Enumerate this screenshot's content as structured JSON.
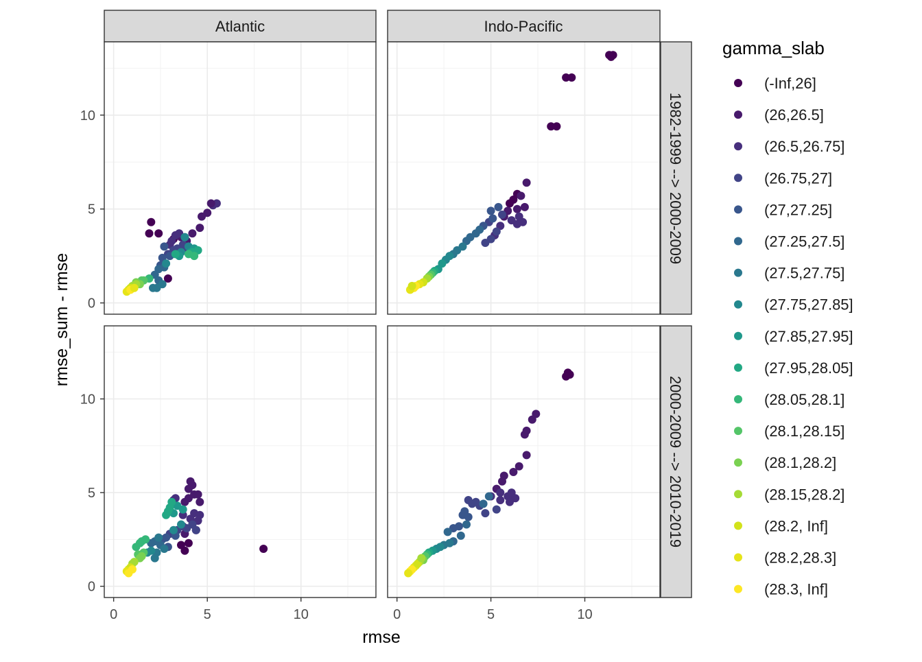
{
  "chart_data": {
    "type": "scatter",
    "xlabel": "rmse",
    "ylabel": "rmse_sum - rmse",
    "xlim": [
      -0.5,
      14
    ],
    "ylim": [
      -0.6,
      13.9
    ],
    "x_ticks": [
      0,
      5,
      10
    ],
    "y_ticks": [
      0,
      5,
      10
    ],
    "grid": true,
    "legend": {
      "title": "gamma_slab",
      "placement": "right",
      "entries": [
        {
          "label": "(-Inf,26]",
          "color": "#440154"
        },
        {
          "label": "(26,26.5]",
          "color": "#481A6C"
        },
        {
          "label": "(26.5,26.75]",
          "color": "#472F7D"
        },
        {
          "label": "(26.75,27]",
          "color": "#414487"
        },
        {
          "label": "(27,27.25]",
          "color": "#39568C"
        },
        {
          "label": "(27.25,27.5]",
          "color": "#31688E"
        },
        {
          "label": "(27.5,27.75]",
          "color": "#2A788E"
        },
        {
          "label": "(27.75,27.85]",
          "color": "#23888E"
        },
        {
          "label": "(27.85,27.95]",
          "color": "#1F988B"
        },
        {
          "label": "(27.95,28.05]",
          "color": "#22A884"
        },
        {
          "label": "(28.05,28.1]",
          "color": "#35B779"
        },
        {
          "label": "(28.1,28.15]",
          "color": "#54C568"
        },
        {
          "label": "(28.1,28.2]",
          "color": "#7AD151"
        },
        {
          "label": "(28.15,28.2]",
          "color": "#A5DB36"
        },
        {
          "label": "(28.2, Inf]",
          "color": "#D2E21B"
        },
        {
          "label": "(28.2,28.3]",
          "color": "#E6E419"
        },
        {
          "label": "(28.3, Inf]",
          "color": "#FDE725"
        }
      ]
    },
    "facet_columns": [
      "Atlantic",
      "Indo-Pacific"
    ],
    "facet_rows": [
      "1982-1999 --> 2000-2009",
      "2000-2009 --> 2010-2019"
    ],
    "panels": [
      {
        "column": "Atlantic",
        "row": "1982-1999 --> 2000-2009",
        "points": [
          [
            2.0,
            4.3,
            0
          ],
          [
            1.9,
            3.7,
            0
          ],
          [
            2.4,
            3.7,
            0
          ],
          [
            2.9,
            1.3,
            0
          ],
          [
            3.2,
            3.4,
            0
          ],
          [
            3.6,
            3.5,
            1
          ],
          [
            3.9,
            3.3,
            1
          ],
          [
            4.2,
            3.7,
            1
          ],
          [
            4.6,
            4.0,
            1
          ],
          [
            4.7,
            4.6,
            1
          ],
          [
            5.0,
            4.8,
            1
          ],
          [
            5.3,
            5.2,
            2
          ],
          [
            5.5,
            5.3,
            2
          ],
          [
            5.2,
            5.3,
            1
          ],
          [
            3.1,
            3.3,
            2
          ],
          [
            3.3,
            3.6,
            2
          ],
          [
            3.5,
            3.7,
            2
          ],
          [
            3.8,
            3.5,
            2
          ],
          [
            3.0,
            3.1,
            2
          ],
          [
            3.4,
            2.9,
            3
          ],
          [
            3.7,
            3.1,
            3
          ],
          [
            3.9,
            2.8,
            3
          ],
          [
            2.9,
            2.6,
            3
          ],
          [
            3.2,
            2.8,
            3
          ],
          [
            2.7,
            3.0,
            4
          ],
          [
            3.0,
            2.5,
            4
          ],
          [
            2.5,
            2.0,
            4
          ],
          [
            2.6,
            2.4,
            4
          ],
          [
            2.4,
            1.8,
            5
          ],
          [
            2.7,
            1.9,
            5
          ],
          [
            2.2,
            1.5,
            5
          ],
          [
            2.4,
            1.2,
            5
          ],
          [
            2.6,
            1.0,
            6
          ],
          [
            2.3,
            0.8,
            6
          ],
          [
            2.1,
            0.8,
            6
          ],
          [
            2.8,
            2.1,
            7
          ],
          [
            3.6,
            2.7,
            7
          ],
          [
            3.8,
            3.5,
            7
          ],
          [
            4.0,
            3.0,
            7
          ],
          [
            3.5,
            2.5,
            8
          ],
          [
            4.1,
            2.7,
            8
          ],
          [
            4.3,
            2.9,
            8
          ],
          [
            4.5,
            2.8,
            9
          ],
          [
            3.3,
            2.6,
            9
          ],
          [
            4.2,
            2.7,
            9
          ],
          [
            4.3,
            2.5,
            10
          ],
          [
            4.0,
            2.6,
            10
          ],
          [
            1.9,
            1.3,
            10
          ],
          [
            1.6,
            1.2,
            11
          ],
          [
            1.5,
            1.2,
            11
          ],
          [
            1.4,
            1.0,
            12
          ],
          [
            1.2,
            1.1,
            12
          ],
          [
            1.2,
            1.0,
            13
          ],
          [
            1.0,
            0.9,
            13
          ],
          [
            0.9,
            0.8,
            14
          ],
          [
            0.8,
            0.7,
            14
          ],
          [
            0.7,
            0.6,
            15
          ],
          [
            0.9,
            0.7,
            16
          ],
          [
            1.1,
            0.8,
            15
          ]
        ]
      },
      {
        "column": "Indo-Pacific",
        "row": "1982-1999 --> 2000-2009",
        "points": [
          [
            11.3,
            13.2,
            0
          ],
          [
            11.5,
            13.2,
            0
          ],
          [
            11.4,
            13.1,
            0
          ],
          [
            9.0,
            12.0,
            0
          ],
          [
            9.3,
            12.0,
            0
          ],
          [
            8.2,
            9.4,
            0
          ],
          [
            8.5,
            9.4,
            0
          ],
          [
            6.2,
            5.5,
            0
          ],
          [
            6.0,
            5.3,
            0
          ],
          [
            6.4,
            5.8,
            0
          ],
          [
            6.9,
            6.4,
            1
          ],
          [
            6.6,
            5.7,
            1
          ],
          [
            6.4,
            5.0,
            1
          ],
          [
            6.8,
            5.1,
            1
          ],
          [
            5.9,
            4.9,
            1
          ],
          [
            5.7,
            4.6,
            1
          ],
          [
            6.1,
            4.4,
            2
          ],
          [
            6.4,
            4.2,
            2
          ],
          [
            6.7,
            4.3,
            2
          ],
          [
            6.5,
            4.6,
            2
          ],
          [
            5.5,
            4.1,
            2
          ],
          [
            5.2,
            3.6,
            2
          ],
          [
            4.7,
            3.2,
            3
          ],
          [
            5.0,
            3.4,
            3
          ],
          [
            5.3,
            3.8,
            3
          ],
          [
            5.6,
            4.7,
            3
          ],
          [
            4.9,
            4.3,
            3
          ],
          [
            5.1,
            4.5,
            4
          ],
          [
            5.4,
            5.1,
            4
          ],
          [
            5.0,
            4.9,
            4
          ],
          [
            4.6,
            4.1,
            4
          ],
          [
            4.2,
            3.7,
            5
          ],
          [
            4.4,
            3.9,
            5
          ],
          [
            3.7,
            3.3,
            5
          ],
          [
            3.9,
            3.5,
            5
          ],
          [
            3.5,
            3.0,
            6
          ],
          [
            3.2,
            2.8,
            6
          ],
          [
            3.0,
            2.6,
            6
          ],
          [
            2.8,
            2.5,
            7
          ],
          [
            2.6,
            2.3,
            7
          ],
          [
            2.4,
            2.1,
            8
          ],
          [
            2.2,
            1.8,
            8
          ],
          [
            2.0,
            1.7,
            9
          ],
          [
            1.9,
            1.6,
            10
          ],
          [
            1.8,
            1.5,
            11
          ],
          [
            1.7,
            1.4,
            12
          ],
          [
            1.6,
            1.3,
            13
          ],
          [
            1.4,
            1.1,
            14
          ],
          [
            1.2,
            1.0,
            15
          ],
          [
            1.0,
            0.9,
            16
          ],
          [
            0.9,
            0.8,
            16
          ],
          [
            0.7,
            0.7,
            15
          ],
          [
            0.8,
            0.9,
            14
          ]
        ]
      },
      {
        "column": "Atlantic",
        "row": "2000-2009 --> 2010-2019",
        "points": [
          [
            8.0,
            2.0,
            0
          ],
          [
            4.4,
            3.0,
            0
          ],
          [
            4.2,
            3.3,
            0
          ],
          [
            3.8,
            1.9,
            0
          ],
          [
            3.6,
            2.2,
            0
          ],
          [
            4.0,
            2.3,
            0
          ],
          [
            3.8,
            2.8,
            1
          ],
          [
            4.1,
            5.6,
            1
          ],
          [
            4.2,
            5.4,
            1
          ],
          [
            4.0,
            5.2,
            1
          ],
          [
            4.3,
            4.9,
            1
          ],
          [
            4.5,
            4.9,
            1
          ],
          [
            4.6,
            4.5,
            1
          ],
          [
            3.8,
            4.5,
            1
          ],
          [
            4.0,
            4.7,
            1
          ],
          [
            4.3,
            3.9,
            2
          ],
          [
            4.6,
            3.8,
            2
          ],
          [
            3.3,
            4.7,
            2
          ],
          [
            3.2,
            4.6,
            2
          ],
          [
            3.7,
            3.8,
            2
          ],
          [
            4.1,
            3.6,
            2
          ],
          [
            4.5,
            3.5,
            2
          ],
          [
            4.2,
            3.3,
            3
          ],
          [
            4.4,
            3.0,
            3
          ],
          [
            3.9,
            3.1,
            3
          ],
          [
            3.7,
            3.2,
            3
          ],
          [
            3.4,
            3.0,
            3
          ],
          [
            3.0,
            2.8,
            3
          ],
          [
            2.8,
            2.6,
            4
          ],
          [
            2.6,
            2.5,
            4
          ],
          [
            3.3,
            2.7,
            4
          ],
          [
            2.9,
            2.1,
            4
          ],
          [
            2.5,
            2.2,
            5
          ],
          [
            2.2,
            2.4,
            5
          ],
          [
            2.0,
            2.3,
            5
          ],
          [
            2.4,
            2.6,
            6
          ],
          [
            2.7,
            2.0,
            6
          ],
          [
            2.3,
            1.8,
            6
          ],
          [
            2.2,
            1.5,
            6
          ],
          [
            1.8,
            1.8,
            7
          ],
          [
            2.0,
            1.9,
            7
          ],
          [
            3.2,
            3.0,
            7
          ],
          [
            3.6,
            3.3,
            7
          ],
          [
            3.7,
            4.1,
            8
          ],
          [
            3.4,
            4.3,
            8
          ],
          [
            3.2,
            3.9,
            8
          ],
          [
            2.8,
            3.8,
            9
          ],
          [
            2.9,
            4.0,
            9
          ],
          [
            3.0,
            4.2,
            9
          ],
          [
            3.1,
            4.5,
            9
          ],
          [
            1.7,
            2.5,
            10
          ],
          [
            1.5,
            2.4,
            10
          ],
          [
            1.4,
            2.3,
            10
          ],
          [
            1.2,
            2.1,
            10
          ],
          [
            1.6,
            1.8,
            11
          ],
          [
            1.3,
            1.7,
            11
          ],
          [
            1.4,
            1.5,
            12
          ],
          [
            1.5,
            1.6,
            12
          ],
          [
            1.1,
            1.3,
            13
          ],
          [
            1.0,
            1.2,
            13
          ],
          [
            0.9,
            1.0,
            14
          ],
          [
            0.8,
            0.9,
            14
          ],
          [
            0.7,
            0.8,
            15
          ],
          [
            0.8,
            0.7,
            16
          ],
          [
            1.0,
            0.9,
            16
          ]
        ]
      },
      {
        "column": "Indo-Pacific",
        "row": "2000-2009 --> 2010-2019",
        "points": [
          [
            9.1,
            11.4,
            0
          ],
          [
            9.2,
            11.3,
            0
          ],
          [
            9.0,
            11.2,
            0
          ],
          [
            7.4,
            9.2,
            1
          ],
          [
            7.2,
            8.9,
            1
          ],
          [
            6.9,
            8.3,
            1
          ],
          [
            6.8,
            8.1,
            1
          ],
          [
            6.9,
            7.0,
            1
          ],
          [
            6.5,
            6.4,
            1
          ],
          [
            6.2,
            6.1,
            1
          ],
          [
            5.6,
            5.6,
            1
          ],
          [
            5.7,
            5.9,
            1
          ],
          [
            5.3,
            5.2,
            1
          ],
          [
            5.5,
            5.0,
            2
          ],
          [
            5.9,
            4.8,
            2
          ],
          [
            6.1,
            5.0,
            2
          ],
          [
            6.3,
            4.7,
            2
          ],
          [
            6.0,
            4.5,
            2
          ],
          [
            5.5,
            4.6,
            2
          ],
          [
            5.0,
            4.8,
            2
          ],
          [
            5.3,
            4.1,
            3
          ],
          [
            4.7,
            3.9,
            3
          ],
          [
            4.4,
            4.3,
            3
          ],
          [
            4.2,
            4.5,
            3
          ],
          [
            3.8,
            4.6,
            3
          ],
          [
            4.0,
            4.4,
            3
          ],
          [
            3.6,
            4.0,
            4
          ],
          [
            3.8,
            3.7,
            4
          ],
          [
            3.5,
            3.8,
            4
          ],
          [
            3.3,
            3.2,
            4
          ],
          [
            3.0,
            3.1,
            4
          ],
          [
            2.7,
            2.9,
            5
          ],
          [
            3.0,
            2.4,
            5
          ],
          [
            3.4,
            2.7,
            5
          ],
          [
            3.7,
            3.3,
            5
          ],
          [
            4.6,
            4.4,
            5
          ],
          [
            4.9,
            4.8,
            5
          ],
          [
            2.8,
            2.3,
            6
          ],
          [
            2.5,
            2.2,
            6
          ],
          [
            2.3,
            2.1,
            7
          ],
          [
            2.1,
            2.0,
            7
          ],
          [
            1.9,
            1.9,
            8
          ],
          [
            1.7,
            1.8,
            9
          ],
          [
            1.6,
            1.7,
            10
          ],
          [
            1.5,
            1.6,
            11
          ],
          [
            1.4,
            1.4,
            12
          ],
          [
            1.2,
            1.3,
            13
          ],
          [
            1.0,
            1.1,
            14
          ],
          [
            0.9,
            1.0,
            15
          ],
          [
            0.8,
            0.9,
            16
          ],
          [
            0.7,
            0.8,
            16
          ],
          [
            0.6,
            0.7,
            15
          ],
          [
            1.1,
            1.2,
            14
          ],
          [
            1.3,
            1.5,
            13
          ]
        ]
      }
    ]
  }
}
